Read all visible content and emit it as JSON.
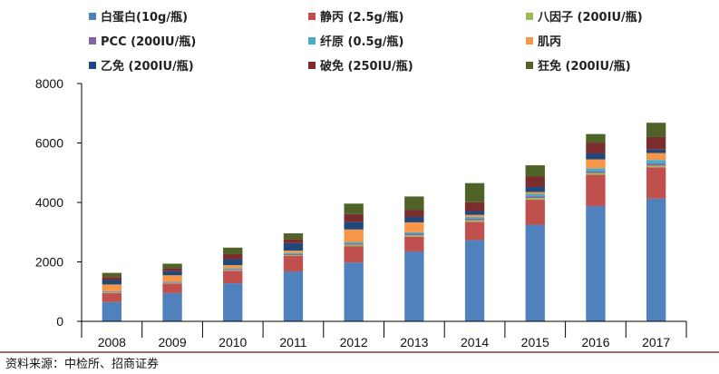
{
  "chart_data": {
    "type": "bar",
    "stacked": true,
    "title": "",
    "xlabel": "",
    "ylabel": "",
    "ylim": [
      0,
      8000
    ],
    "yticks": [
      0,
      2000,
      4000,
      6000,
      8000
    ],
    "grid": false,
    "legend_position": "top",
    "categories": [
      "2008",
      "2009",
      "2010",
      "2011",
      "2012",
      "2013",
      "2014",
      "2015",
      "2016",
      "2017"
    ],
    "series": [
      {
        "name": "白蛋白(10g/瓶)",
        "color": "#4F81BD",
        "values": [
          650,
          950,
          1280,
          1680,
          1980,
          2350,
          2730,
          3250,
          3880,
          4130
        ]
      },
      {
        "name": "静丙 (2.5g/瓶)",
        "color": "#C0504D",
        "values": [
          300,
          320,
          420,
          520,
          550,
          500,
          620,
          840,
          1050,
          1050
        ]
      },
      {
        "name": "八因子 (200IU/瓶)",
        "color": "#9BBB59",
        "values": [
          20,
          20,
          30,
          30,
          50,
          50,
          50,
          60,
          60,
          60
        ]
      },
      {
        "name": "PCC (200IU/瓶)",
        "color": "#8064A2",
        "values": [
          20,
          20,
          30,
          30,
          40,
          50,
          50,
          60,
          60,
          70
        ]
      },
      {
        "name": "纤原 (0.5g/瓶)",
        "color": "#4BACC6",
        "values": [
          20,
          20,
          30,
          40,
          50,
          50,
          60,
          80,
          100,
          120
        ]
      },
      {
        "name": "肌丙",
        "color": "#F79646",
        "values": [
          230,
          220,
          100,
          80,
          420,
          330,
          70,
          60,
          300,
          230
        ]
      },
      {
        "name": "乙免 (200IU/瓶)",
        "color": "#1F497D",
        "values": [
          150,
          140,
          200,
          250,
          250,
          180,
          130,
          170,
          200,
          120
        ]
      },
      {
        "name": "破免 (250IU/瓶)",
        "color": "#7B2C2C",
        "values": [
          100,
          100,
          170,
          130,
          270,
          230,
          300,
          350,
          350,
          420
        ]
      },
      {
        "name": "狂免 (200IU/瓶)",
        "color": "#4F6228",
        "values": [
          140,
          150,
          220,
          200,
          350,
          460,
          640,
          380,
          300,
          480
        ]
      }
    ]
  },
  "source": "资料来源：中检所、招商证券"
}
